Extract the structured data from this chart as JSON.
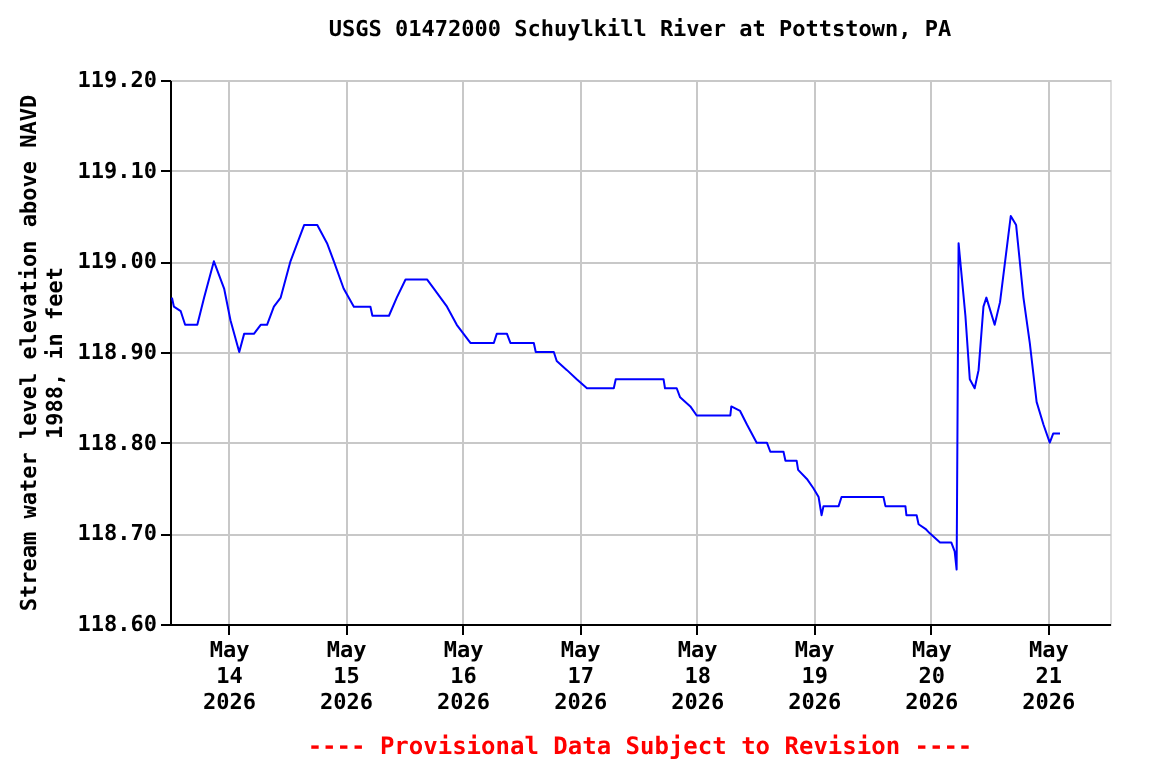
{
  "chart_data": {
    "type": "line",
    "title": "USGS 01472000 Schuylkill River at Pottstown, PA",
    "ylabel": "Stream water level elevation above NAVD 1988, in feet",
    "annotations": [
      "---- Provisional Data Subject to Revision ----"
    ],
    "series": [
      {
        "color": "#0000ff",
        "x": [
          "2026-05-13T12:24",
          "2026-05-13T12:48",
          "2026-05-13T14:12",
          "2026-05-13T15:06",
          "2026-05-13T17:36",
          "2026-05-13T19:00",
          "2026-05-13T21:00",
          "2026-05-13T23:06",
          "2026-05-14T00:24",
          "2026-05-14T02:12",
          "2026-05-14T03:12",
          "2026-05-14T05:12",
          "2026-05-14T06:36",
          "2026-05-14T07:54",
          "2026-05-14T09:18",
          "2026-05-14T10:42",
          "2026-05-14T12:42",
          "2026-05-14T15:30",
          "2026-05-14T18:12",
          "2026-05-14T20:12",
          "2026-05-14T21:36",
          "2026-05-14T23:36",
          "2026-05-15T01:42",
          "2026-05-15T05:06",
          "2026-05-15T05:30",
          "2026-05-15T08:54",
          "2026-05-15T10:30",
          "2026-05-15T12:18",
          "2026-05-15T16:42",
          "2026-05-15T18:06",
          "2026-05-15T20:48",
          "2026-05-15T22:48",
          "2026-05-16T01:36",
          "2026-05-16T06:24",
          "2026-05-16T07:00",
          "2026-05-16T09:06",
          "2026-05-16T09:48",
          "2026-05-16T14:36",
          "2026-05-16T15:00",
          "2026-05-16T18:42",
          "2026-05-16T19:18",
          "2026-05-16T21:24",
          "2026-05-16T23:24",
          "2026-05-17T01:30",
          "2026-05-17T07:00",
          "2026-05-17T07:24",
          "2026-05-17T17:12",
          "2026-05-17T17:30",
          "2026-05-17T19:54",
          "2026-05-17T20:36",
          "2026-05-17T22:42",
          "2026-05-18T00:00",
          "2026-05-18T06:54",
          "2026-05-18T07:06",
          "2026-05-18T08:54",
          "2026-05-18T10:18",
          "2026-05-18T12:18",
          "2026-05-18T14:24",
          "2026-05-18T15:06",
          "2026-05-18T17:48",
          "2026-05-18T18:12",
          "2026-05-18T20:30",
          "2026-05-18T20:48",
          "2026-05-18T22:36",
          "2026-05-18T23:54",
          "2026-05-19T01:00",
          "2026-05-19T01:36",
          "2026-05-19T02:00",
          "2026-05-19T05:06",
          "2026-05-19T05:42",
          "2026-05-19T14:18",
          "2026-05-19T14:42",
          "2026-05-19T18:48",
          "2026-05-19T19:00",
          "2026-05-19T21:06",
          "2026-05-19T21:30",
          "2026-05-19T22:54",
          "2026-05-19T23:48",
          "2026-05-20T01:54",
          "2026-05-20T04:12",
          "2026-05-20T04:54",
          "2026-05-20T05:18",
          "2026-05-20T05:42",
          "2026-05-20T07:06",
          "2026-05-20T08:00",
          "2026-05-20T09:00",
          "2026-05-20T09:48",
          "2026-05-20T10:48",
          "2026-05-20T11:24",
          "2026-05-20T13:06",
          "2026-05-20T14:12",
          "2026-05-20T16:24",
          "2026-05-20T17:30",
          "2026-05-20T19:00",
          "2026-05-20T20:18",
          "2026-05-20T21:42",
          "2026-05-20T23:06",
          "2026-05-21T00:24",
          "2026-05-21T01:06",
          "2026-05-21T02:30"
        ],
        "values": [
          118.96,
          118.95,
          118.945,
          118.93,
          118.93,
          118.96,
          119.0,
          118.97,
          118.935,
          118.9,
          118.92,
          118.92,
          118.93,
          118.93,
          118.95,
          118.96,
          119.0,
          119.04,
          119.04,
          119.02,
          119.0,
          118.97,
          118.95,
          118.95,
          118.94,
          118.94,
          118.96,
          118.98,
          118.98,
          118.97,
          118.95,
          118.93,
          118.91,
          118.91,
          118.92,
          118.92,
          118.91,
          118.91,
          118.9,
          118.9,
          118.89,
          118.88,
          118.87,
          118.86,
          118.86,
          118.87,
          118.87,
          118.86,
          118.86,
          118.85,
          118.84,
          118.83,
          118.83,
          118.84,
          118.835,
          118.82,
          118.8,
          118.8,
          118.79,
          118.79,
          118.78,
          118.78,
          118.77,
          118.76,
          118.75,
          118.74,
          118.72,
          118.73,
          118.73,
          118.74,
          118.74,
          118.73,
          118.73,
          118.72,
          118.72,
          118.71,
          118.705,
          118.7,
          118.69,
          118.69,
          118.68,
          118.66,
          119.02,
          118.94,
          118.87,
          118.86,
          118.88,
          118.95,
          118.96,
          118.93,
          118.955,
          119.05,
          119.04,
          118.96,
          118.91,
          118.845,
          118.82,
          118.8,
          118.81,
          118.81
        ]
      }
    ],
    "xlim": [
      "2026-05-13T12:00",
      "2026-05-21T12:45"
    ],
    "xticks": [
      {
        "value": "2026-05-14",
        "label": "May\n14\n2026"
      },
      {
        "value": "2026-05-15",
        "label": "May\n15\n2026"
      },
      {
        "value": "2026-05-16",
        "label": "May\n16\n2026"
      },
      {
        "value": "2026-05-17",
        "label": "May\n17\n2026"
      },
      {
        "value": "2026-05-18",
        "label": "May\n18\n2026"
      },
      {
        "value": "2026-05-19",
        "label": "May\n19\n2026"
      },
      {
        "value": "2026-05-20",
        "label": "May\n20\n2026"
      },
      {
        "value": "2026-05-21",
        "label": "May\n21\n2026"
      }
    ],
    "ylim": [
      118.6,
      119.2
    ],
    "yticks": [
      {
        "value": 118.6,
        "label": "118.60"
      },
      {
        "value": 118.7,
        "label": "118.70"
      },
      {
        "value": 118.8,
        "label": "118.80"
      },
      {
        "value": 118.9,
        "label": "118.90"
      },
      {
        "value": 119.0,
        "label": "119.00"
      },
      {
        "value": 119.1,
        "label": "119.10"
      },
      {
        "value": 119.2,
        "label": "119.20"
      }
    ],
    "grid": true
  }
}
